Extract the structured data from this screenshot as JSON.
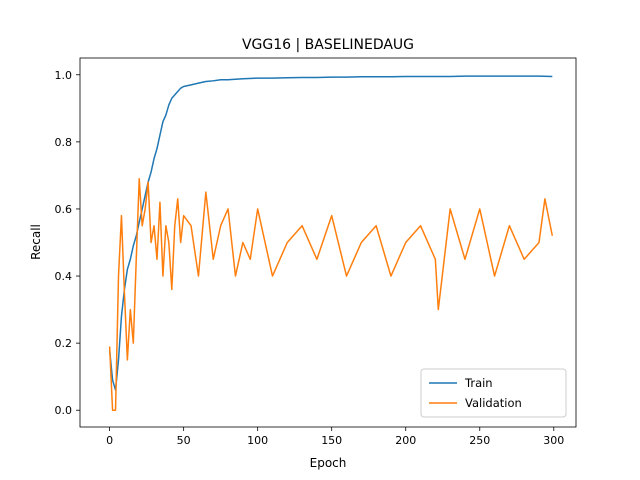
{
  "chart_data": {
    "type": "line",
    "title": "VGG16 | BASELINEDAUG",
    "xlabel": "Epoch",
    "ylabel": "Recall",
    "xlim": [
      -20,
      315
    ],
    "ylim": [
      -0.05,
      1.05
    ],
    "xticks": [
      0,
      50,
      100,
      150,
      200,
      250,
      300
    ],
    "yticks": [
      0.0,
      0.2,
      0.4,
      0.6,
      0.8,
      1.0
    ],
    "ytick_labels": [
      "0.0",
      "0.2",
      "0.4",
      "0.6",
      "0.8",
      "1.0"
    ],
    "grid": false,
    "legend_position": "lower-right",
    "series": [
      {
        "name": "Train",
        "color": "#1f77b4",
        "x": [
          0,
          2,
          4,
          6,
          8,
          10,
          12,
          14,
          16,
          18,
          20,
          22,
          24,
          26,
          28,
          30,
          32,
          34,
          36,
          38,
          40,
          42,
          44,
          46,
          48,
          50,
          55,
          60,
          65,
          70,
          75,
          80,
          90,
          100,
          110,
          120,
          130,
          140,
          150,
          160,
          170,
          180,
          190,
          200,
          210,
          220,
          230,
          240,
          250,
          260,
          270,
          280,
          290,
          299
        ],
        "values": [
          0.18,
          0.09,
          0.06,
          0.15,
          0.28,
          0.36,
          0.42,
          0.45,
          0.49,
          0.52,
          0.56,
          0.6,
          0.64,
          0.68,
          0.71,
          0.75,
          0.78,
          0.82,
          0.86,
          0.88,
          0.91,
          0.93,
          0.94,
          0.95,
          0.96,
          0.965,
          0.97,
          0.975,
          0.98,
          0.982,
          0.985,
          0.985,
          0.988,
          0.99,
          0.99,
          0.991,
          0.992,
          0.992,
          0.993,
          0.993,
          0.994,
          0.994,
          0.994,
          0.995,
          0.995,
          0.995,
          0.995,
          0.996,
          0.996,
          0.996,
          0.996,
          0.996,
          0.996,
          0.995
        ]
      },
      {
        "name": "Validation",
        "color": "#ff7f0e",
        "x": [
          0,
          2,
          4,
          6,
          8,
          10,
          12,
          14,
          16,
          18,
          20,
          22,
          24,
          26,
          28,
          30,
          32,
          34,
          36,
          38,
          40,
          42,
          44,
          46,
          48,
          50,
          55,
          60,
          65,
          70,
          75,
          80,
          85,
          90,
          95,
          100,
          110,
          120,
          130,
          140,
          150,
          160,
          170,
          180,
          190,
          200,
          210,
          220,
          222,
          230,
          240,
          250,
          260,
          270,
          280,
          290,
          294,
          299
        ],
        "values": [
          0.19,
          0.0,
          0.0,
          0.4,
          0.58,
          0.35,
          0.15,
          0.3,
          0.2,
          0.45,
          0.69,
          0.55,
          0.6,
          0.68,
          0.5,
          0.55,
          0.45,
          0.62,
          0.4,
          0.55,
          0.5,
          0.36,
          0.55,
          0.63,
          0.5,
          0.58,
          0.55,
          0.4,
          0.65,
          0.45,
          0.55,
          0.6,
          0.4,
          0.5,
          0.45,
          0.6,
          0.4,
          0.5,
          0.55,
          0.45,
          0.58,
          0.4,
          0.5,
          0.55,
          0.4,
          0.5,
          0.55,
          0.45,
          0.3,
          0.6,
          0.45,
          0.6,
          0.4,
          0.55,
          0.45,
          0.5,
          0.63,
          0.52
        ]
      }
    ]
  }
}
